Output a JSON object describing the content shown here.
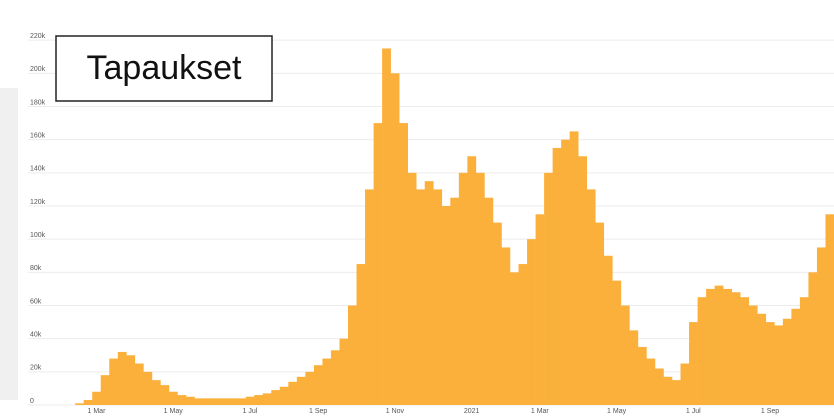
{
  "chart_data": {
    "type": "bar",
    "title": "Tapaukset",
    "color": "#fbb03b",
    "grid": true,
    "categories": [
      null,
      null,
      null,
      null,
      null,
      null,
      null,
      null,
      "1 Mar",
      null,
      null,
      null,
      null,
      null,
      null,
      null,
      null,
      "1 May",
      null,
      null,
      null,
      null,
      null,
      null,
      null,
      null,
      "1 Jul",
      null,
      null,
      null,
      null,
      null,
      null,
      null,
      "1 Sep",
      null,
      null,
      null,
      null,
      null,
      null,
      null,
      null,
      "1 Nov",
      null,
      null,
      null,
      null,
      null,
      null,
      null,
      null,
      "2021",
      null,
      null,
      null,
      null,
      null,
      null,
      null,
      "1 Mar",
      null,
      null,
      null,
      null,
      null,
      null,
      null,
      null,
      "1 May",
      null,
      null,
      null,
      null,
      null,
      null,
      null,
      null,
      "1 Jul",
      null,
      null,
      null,
      null,
      null,
      null,
      null,
      null,
      "1 Sep",
      null,
      null,
      null,
      null,
      null,
      null,
      null
    ],
    "values": [
      0,
      0,
      0,
      0,
      0,
      0,
      1000,
      3000,
      8000,
      18000,
      28000,
      32000,
      30000,
      25000,
      20000,
      15000,
      12000,
      8000,
      6000,
      5000,
      4000,
      4000,
      4000,
      4000,
      4000,
      4000,
      5000,
      6000,
      7000,
      9000,
      11000,
      14000,
      17000,
      20000,
      24000,
      28000,
      33000,
      40000,
      60000,
      85000,
      130000,
      170000,
      215000,
      200000,
      170000,
      140000,
      130000,
      135000,
      130000,
      120000,
      125000,
      140000,
      150000,
      140000,
      125000,
      110000,
      95000,
      80000,
      85000,
      100000,
      115000,
      140000,
      155000,
      160000,
      165000,
      150000,
      130000,
      110000,
      90000,
      75000,
      60000,
      45000,
      35000,
      28000,
      22000,
      17000,
      15000,
      25000,
      50000,
      65000,
      70000,
      72000,
      70000,
      68000,
      65000,
      60000,
      55000,
      50000,
      48000,
      52000,
      58000,
      65000,
      80000,
      95000,
      115000
    ],
    "ylim": [
      0,
      240000
    ],
    "yticks": [
      0,
      {
        "value": 20000,
        "label": "20k"
      },
      {
        "value": 40000,
        "label": "40k"
      },
      {
        "value": 60000,
        "label": "60k"
      },
      {
        "value": 80000,
        "label": "80k"
      },
      {
        "value": 100000,
        "label": "100k"
      },
      {
        "value": 120000,
        "label": "120k"
      },
      {
        "value": 140000,
        "label": "140k"
      },
      {
        "value": 160000,
        "label": "160k"
      },
      {
        "value": 180000,
        "label": "180k"
      },
      {
        "value": 200000,
        "label": "200k"
      },
      {
        "value": 220000,
        "label": "220k"
      }
    ]
  }
}
